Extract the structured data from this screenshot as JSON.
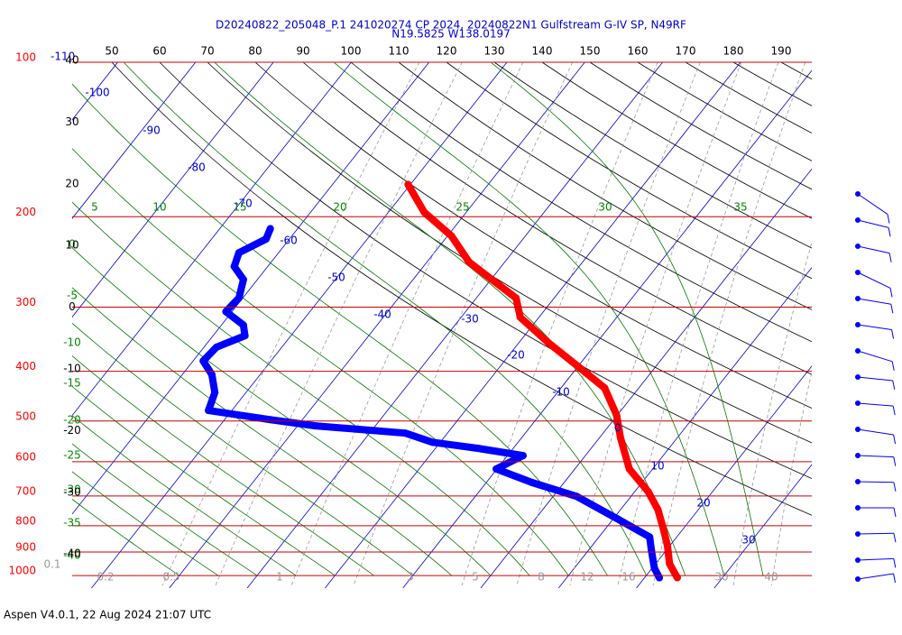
{
  "chart_data": {
    "type": "skew-t",
    "title": "D20240822_205048_P.1 241020274 CP 2024, 20240822N1 Gulfstream G-IV SP, N49RF",
    "subtitle": "N19.5825 W138.0197",
    "footer": "Aspen V4.0.1, 22 Aug 2024  21:07 UTC",
    "log_y": true,
    "ylim": [
      1058,
      100
    ],
    "yticks": [
      100,
      200,
      300,
      400,
      500,
      600,
      700,
      800,
      900,
      1000
    ],
    "isotherms": [
      -110,
      -100,
      -90,
      -80,
      -70,
      -60,
      -50,
      -40,
      -30,
      -20,
      -10,
      0,
      10,
      20,
      30
    ],
    "dry_adiabats": [
      50,
      60,
      70,
      80,
      90,
      100,
      110,
      120,
      130,
      140,
      150,
      160,
      170,
      180,
      190
    ],
    "moist_adiabats": [
      5,
      10,
      15,
      20,
      25,
      30,
      35
    ],
    "moist_adiabats_left": [
      0,
      -5,
      -10,
      -15,
      -20,
      -25,
      -30,
      -35,
      -40
    ],
    "height_labels": [
      40,
      30,
      20,
      10,
      0,
      -10,
      -20,
      -30,
      -40
    ],
    "mixing_ratios": [
      0.1,
      0.2,
      0.5,
      1,
      3,
      5,
      8,
      12,
      16,
      30,
      40
    ],
    "series": [
      {
        "color": "#ff0000",
        "pressure": [
          173,
          196,
          218,
          245,
          288,
          314,
          352,
          390,
          431,
          487,
          539,
          620,
          686,
          744,
          807,
          875,
          949,
          1010
        ],
        "values": [
          -50.3,
          -45.4,
          -39.5,
          -34.6,
          -24.9,
          -22.4,
          -16.2,
          -10.2,
          -4.4,
          -0.1,
          2.7,
          7.0,
          11.7,
          14.8,
          17.3,
          19.7,
          21.8,
          24.2
        ]
      },
      {
        "color": "#0000ff",
        "pressure": [
          211,
          221,
          235,
          250,
          265,
          288,
          306,
          325,
          341,
          359,
          382,
          406,
          440,
          477,
          497,
          511,
          528,
          550,
          565,
          584,
          620,
          659,
          701,
          775,
          841,
          893,
          968,
          1010
        ],
        "values": [
          -63.5,
          -63.0,
          -65.1,
          -64.3,
          -61.8,
          -60.5,
          -60.8,
          -57.2,
          -55.9,
          -58.4,
          -58.7,
          -56.2,
          -54.0,
          -53.0,
          -44.1,
          -37.7,
          -25.4,
          -21.0,
          -14.6,
          -8.0,
          -10.1,
          -4.1,
          3.0,
          10.5,
          16.5,
          18.1,
          20.3,
          21.9
        ]
      }
    ]
  }
}
